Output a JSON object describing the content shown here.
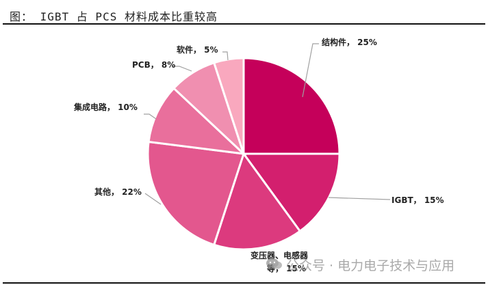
{
  "title": "图： IGBT 占 PCS 材料成本比重较高",
  "chart_data": {
    "type": "pie",
    "title": "图： IGBT 占 PCS 材料成本比重较高",
    "start_angle": "12 o'clock, clockwise",
    "categories": [
      "结构件",
      "IGBT",
      "变压器、电感器等",
      "其他",
      "集成电路",
      "PCB",
      "软件"
    ],
    "values": [
      25,
      15,
      15,
      22,
      10,
      8,
      5
    ],
    "unit": "%",
    "colors": [
      "#C5005A",
      "#D31F6E",
      "#DC3A7E",
      "#E3578E",
      "#E96F9C",
      "#F08FB0",
      "#F9A8BE"
    ],
    "labels": [
      "结构件, 25%",
      "IGBT, 15%",
      "变压器、电感器等, 15%",
      "其他, 22%",
      "集成电路, 10%",
      "PCB, 8%",
      "软件, 5%"
    ],
    "legend": "none (data labels with leader lines)"
  },
  "labels": {
    "jiegoujian": "结构件， 25%",
    "igbt": "IGBT， 15%",
    "transformer_line1": "变压器、电感器",
    "transformer_line2": "等， 15%",
    "other": "其他， 22%",
    "ic": "集成电路， 10%",
    "pcb": "PCB， 8%",
    "software": "软件， 5%"
  },
  "watermark": "公众号 · 电力电子技术与应用"
}
